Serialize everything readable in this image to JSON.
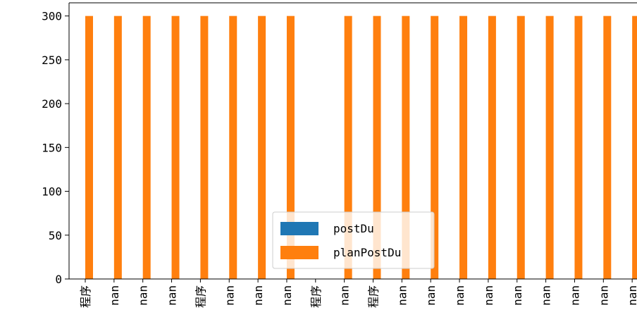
{
  "chart_data": {
    "type": "bar",
    "categories": [
      "程序",
      "nan",
      "nan",
      "nan",
      "程序",
      "nan",
      "nan",
      "nan",
      "程序",
      "nan",
      "程序",
      "nan",
      "nan",
      "nan",
      "nan",
      "nan",
      "nan",
      "nan",
      "nan",
      "nan"
    ],
    "series": [
      {
        "name": "postDu",
        "color": "#1f77b4",
        "values": [
          0,
          0,
          0,
          0,
          0,
          0,
          0,
          0,
          0,
          0,
          0,
          0,
          0,
          0,
          0,
          0,
          0,
          0,
          0,
          0
        ]
      },
      {
        "name": "planPostDu",
        "color": "#ff7f0e",
        "values": [
          300,
          300,
          300,
          300,
          300,
          300,
          300,
          300,
          null,
          300,
          300,
          300,
          300,
          300,
          300,
          300,
          300,
          300,
          300,
          300
        ]
      }
    ],
    "ylim": [
      0,
      315
    ],
    "yticks": [
      0,
      50,
      100,
      150,
      200,
      250,
      300
    ],
    "ytick_labels": [
      "0",
      "50",
      "100",
      "150",
      "200",
      "250",
      "300"
    ],
    "legend": {
      "position": "lower-center",
      "entries": [
        "postDu",
        "planPostDu"
      ]
    },
    "grid": false
  }
}
